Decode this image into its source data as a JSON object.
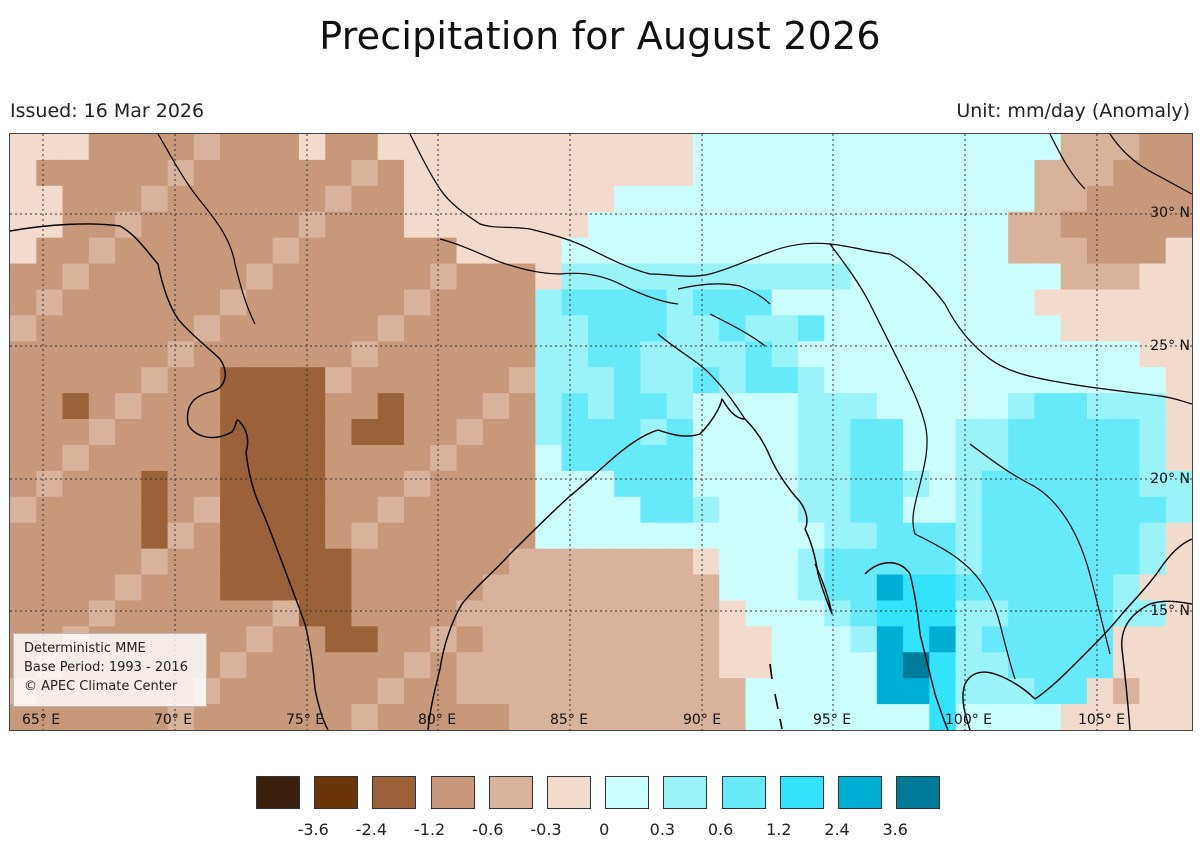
{
  "title": "Precipitation for August 2026",
  "issued": "Issued: 16 Mar 2026",
  "unit": "Unit: mm/day (Anomaly)",
  "info": {
    "line1": "Deterministic MME",
    "line2": "Base Period: 1993 - 2016",
    "line3": "© APEC Climate Center"
  },
  "lon_labels": [
    "65° E",
    "70° E",
    "75° E",
    "80° E",
    "85° E",
    "90° E",
    "95° E",
    "100° E",
    "105° E"
  ],
  "lat_labels": [
    "30° N",
    "25° N",
    "20° N",
    "15° N"
  ],
  "legend": {
    "labels": [
      "-3.6",
      "-2.4",
      "-1.2",
      "-0.6",
      "-0.3",
      "0",
      "0.3",
      "0.6",
      "1.2",
      "2.4",
      "3.6"
    ],
    "colors": [
      "#3b2010",
      "#6b3508",
      "#9b6138",
      "#c8987a",
      "#d9b29c",
      "#f2dbcd",
      "#ccfdfd",
      "#99f3f8",
      "#66eafa",
      "#33e2fb",
      "#00b0d4",
      "#007a99"
    ]
  },
  "colors": {
    "land_line": "#000000",
    "grid_line": "#333333",
    "frame": "#444444"
  }
}
